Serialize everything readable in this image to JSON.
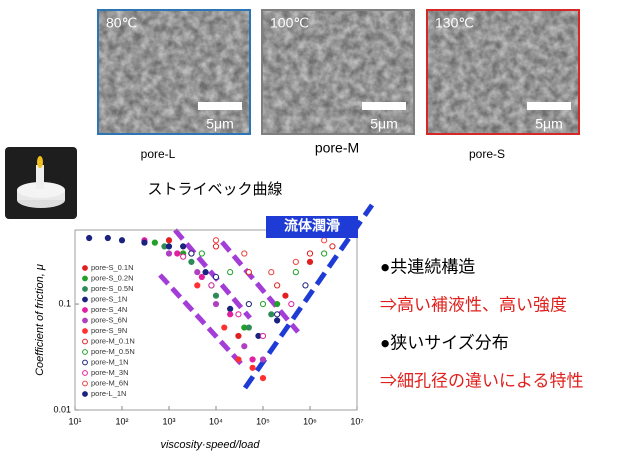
{
  "images": [
    {
      "temperature": "80℃",
      "scale": "5μm",
      "caption": "pore-L",
      "border": "#2e75b6"
    },
    {
      "temperature": "100℃",
      "scale": "5μm",
      "caption": "pore-M",
      "border": "#7f7f7f"
    },
    {
      "temperature": "130℃",
      "scale": "5μm",
      "caption": "pore-S",
      "border": "#d62728"
    }
  ],
  "bullets": [
    {
      "text": "●共連続構造",
      "color": "#000000"
    },
    {
      "text": "⇒高い補液性、高い強度",
      "color": "#e0201c"
    },
    {
      "text": "●狭いサイズ分布",
      "color": "#000000"
    },
    {
      "text": "⇒細孔径の違いによる特性",
      "color": "#e0201c"
    }
  ],
  "chart_data": {
    "type": "scatter",
    "title": "ストライベック曲線",
    "annotation": "流体潤滑",
    "xlabel": "viscosity·speed/load",
    "ylabel": "Coefficient of friction, μ",
    "xscale": "log",
    "yscale": "log",
    "xlim": [
      10,
      10000000
    ],
    "ylim": [
      0.01,
      0.5
    ],
    "xticks": [
      {
        "value": 10,
        "label": "10¹"
      },
      {
        "value": 100,
        "label": "10²"
      },
      {
        "value": 1000,
        "label": "10³"
      },
      {
        "value": 10000,
        "label": "10⁴"
      },
      {
        "value": 100000,
        "label": "10⁵"
      },
      {
        "value": 1000000,
        "label": "10⁶"
      },
      {
        "value": 10000000,
        "label": "10⁷"
      }
    ],
    "yticks": [
      0.01,
      0.1
    ],
    "legend": "left",
    "series": [
      {
        "name": "pore-S_0.1N",
        "color": "#e02020",
        "marker": "filled",
        "x": [
          1000,
          3000,
          30000,
          300000,
          1000000
        ],
        "values": [
          0.4,
          0.3,
          0.05,
          0.12,
          0.25
        ]
      },
      {
        "name": "pore-S_0.2N",
        "color": "#22a02a",
        "marker": "filled",
        "x": [
          500,
          2000,
          8000,
          40000,
          200000
        ],
        "values": [
          0.38,
          0.3,
          0.15,
          0.06,
          0.1
        ]
      },
      {
        "name": "pore-S_0.5N",
        "color": "#2e8b57",
        "marker": "filled",
        "x": [
          800,
          3000,
          10000,
          50000,
          150000
        ],
        "values": [
          0.35,
          0.25,
          0.12,
          0.06,
          0.08
        ]
      },
      {
        "name": "pore-S_1N",
        "color": "#1a237e",
        "marker": "filled",
        "x": [
          2000,
          6000,
          20000,
          80000,
          200000
        ],
        "values": [
          0.35,
          0.2,
          0.09,
          0.05,
          0.07
        ]
      },
      {
        "name": "pore-S_4N",
        "color": "#e020a0",
        "marker": "filled",
        "x": [
          300,
          1500,
          5000,
          20000,
          60000
        ],
        "values": [
          0.4,
          0.3,
          0.18,
          0.08,
          0.03
        ]
      },
      {
        "name": "pore-S_6N",
        "color": "#b040c0",
        "marker": "filled",
        "x": [
          1000,
          4000,
          10000,
          40000,
          100000
        ],
        "values": [
          0.3,
          0.2,
          0.1,
          0.04,
          0.03
        ]
      },
      {
        "name": "pore-S_9N",
        "color": "#ff3030",
        "marker": "filled",
        "x": [
          4000,
          15000,
          30000,
          60000,
          100000
        ],
        "values": [
          0.15,
          0.06,
          0.03,
          0.025,
          0.02
        ]
      },
      {
        "name": "pore-M_0.1N",
        "color": "#e02020",
        "marker": "open",
        "x": [
          10000,
          50000,
          200000,
          1000000,
          3000000
        ],
        "values": [
          0.35,
          0.2,
          0.15,
          0.3,
          0.35
        ]
      },
      {
        "name": "pore-M_0.5N",
        "color": "#22a02a",
        "marker": "open",
        "x": [
          5000,
          20000,
          100000,
          500000,
          2000000
        ],
        "values": [
          0.3,
          0.2,
          0.1,
          0.2,
          0.3
        ]
      },
      {
        "name": "pore-M_1N",
        "color": "#1a237e",
        "marker": "open",
        "x": [
          3000,
          10000,
          50000,
          200000,
          800000
        ],
        "values": [
          0.3,
          0.18,
          0.1,
          0.08,
          0.15
        ]
      },
      {
        "name": "pore-M_3N",
        "color": "#e020a0",
        "marker": "open",
        "x": [
          2000,
          8000,
          30000,
          100000,
          400000
        ],
        "values": [
          0.28,
          0.15,
          0.08,
          0.05,
          0.1
        ]
      },
      {
        "name": "pore-M_6N",
        "color": "#f04040",
        "marker": "open",
        "x": [
          10000,
          40000,
          150000,
          500000,
          2000000
        ],
        "values": [
          0.4,
          0.3,
          0.2,
          0.25,
          0.4
        ]
      },
      {
        "name": "pore-L_1N",
        "color": "#1a237e",
        "marker": "filled",
        "x": [
          20,
          50,
          100,
          300,
          1000
        ],
        "values": [
          0.42,
          0.42,
          0.4,
          0.38,
          0.35
        ]
      }
    ]
  }
}
